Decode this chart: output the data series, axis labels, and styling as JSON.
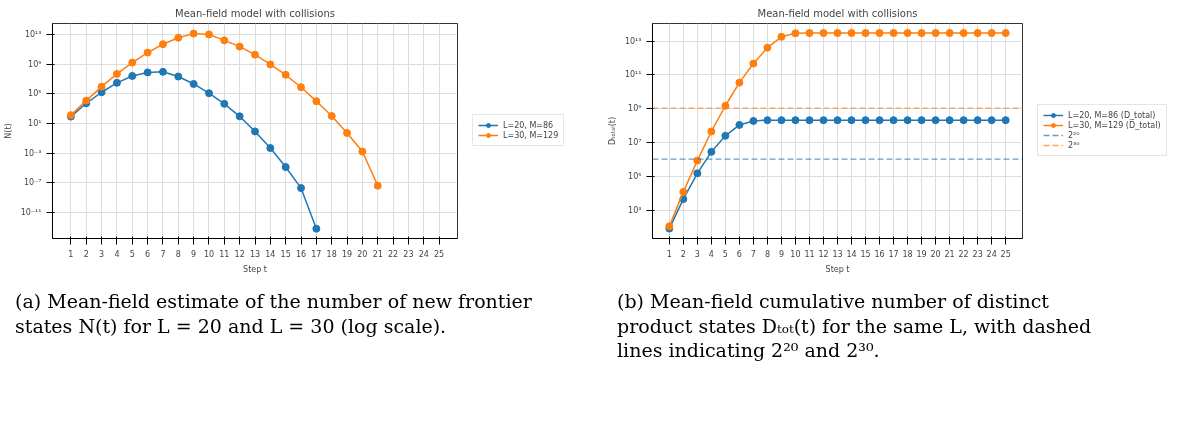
{
  "chart_data": [
    {
      "type": "line",
      "title": "Mean-field model with collisions",
      "xlabel": "Step t",
      "ylabel": "N(t)",
      "log": "y",
      "grid": true,
      "legend": "right",
      "marker": "circle",
      "line_style": "solid",
      "xlim": [
        -0.2,
        26.2
      ],
      "xticks": [
        1,
        2,
        3,
        4,
        5,
        6,
        7,
        8,
        9,
        10,
        11,
        12,
        13,
        14,
        15,
        16,
        17,
        18,
        19,
        20,
        21,
        22,
        23,
        24,
        25
      ],
      "ylim": [
        3e-15,
        300000000000000.0
      ],
      "yticks": [
        {
          "value": 1e-11,
          "label": "10⁻¹¹"
        },
        {
          "value": 1e-07,
          "label": "10⁻⁷"
        },
        {
          "value": 0.001,
          "label": "10⁻³"
        },
        {
          "value": 10.0,
          "label": "10¹"
        },
        {
          "value": 100000.0,
          "label": "10⁵"
        },
        {
          "value": 1000000000.0,
          "label": "10⁹"
        },
        {
          "value": 10000000000000.0,
          "label": "10¹³"
        }
      ],
      "x": [
        1,
        2,
        3,
        4,
        5,
        6,
        7,
        8,
        9,
        10,
        11,
        12,
        13,
        14,
        15,
        16,
        17,
        18,
        19,
        20,
        21
      ],
      "series": [
        {
          "name": "L=20, M=86",
          "color": "#1f77b4",
          "values": [
            83,
            5200,
            160000.0,
            3000000.0,
            25000000.0,
            76000000.0,
            91000000.0,
            21000000.0,
            2100000.0,
            120000.0,
            4400,
            91,
            0.83,
            0.0048,
            1.3e-05,
            1.9e-08,
            6.3e-14,
            null,
            null,
            null,
            null
          ]
        },
        {
          "name": "L=30, M=129",
          "color": "#ff7f0e",
          "values": [
            130,
            12000.0,
            910000.0,
            48000000.0,
            1600000000.0,
            36000000000.0,
            480000000000.0,
            3600000000000.0,
            13000000000000.0,
            10000000000000.0,
            1600000000000.0,
            230000000000.0,
            19000000000.0,
            910000000.0,
            36000000.0,
            760000.0,
            10000.0,
            100,
            0.52,
            0.0016,
            4e-08
          ]
        }
      ],
      "annotations": [
        "(a) Mean-field estimate of the number of new frontier states N(t) for L = 20 and L = 30 (log scale)."
      ]
    },
    {
      "type": "line",
      "title": "Mean-field model with collisions",
      "xlabel": "Step t",
      "ylabel": "Dₜₒₜₐₗ(t)",
      "log": "y",
      "grid": true,
      "legend": "right",
      "marker": "circle",
      "line_style": "solid",
      "xlim": [
        -0.2,
        26.2
      ],
      "xticks": [
        1,
        2,
        3,
        4,
        5,
        6,
        7,
        8,
        9,
        10,
        11,
        12,
        13,
        14,
        15,
        16,
        17,
        18,
        19,
        20,
        21,
        22,
        23,
        24,
        25
      ],
      "ylim": [
        21,
        110000000000000.0
      ],
      "yticks": [
        {
          "value": 1000.0,
          "label": "10³"
        },
        {
          "value": 100000.0,
          "label": "10⁵"
        },
        {
          "value": 10000000.0,
          "label": "10⁷"
        },
        {
          "value": 1000000000.0,
          "label": "10⁹"
        },
        {
          "value": 100000000000.0,
          "label": "10¹¹"
        },
        {
          "value": 10000000000000.0,
          "label": "10¹³"
        }
      ],
      "x": [
        1,
        2,
        3,
        4,
        5,
        6,
        7,
        8,
        9,
        10,
        11,
        12,
        13,
        14,
        15,
        16,
        17,
        18,
        19,
        20,
        21,
        22,
        23,
        24,
        25
      ],
      "series": [
        {
          "name": "L=20, M=86 (D_total)",
          "color": "#1f77b4",
          "values": [
            81,
            4500,
            150000.0,
            2800000.0,
            25000000.0,
            110000000.0,
            190000000.0,
            210000000.0,
            210000000.0,
            210000000.0,
            210000000.0,
            210000000.0,
            210000000.0,
            210000000.0,
            210000000.0,
            210000000.0,
            210000000.0,
            210000000.0,
            210000000.0,
            210000000.0,
            210000000.0,
            210000000.0,
            210000000.0,
            210000000.0,
            210000000.0
          ]
        },
        {
          "name": "L=30, M=129 (D_total)",
          "color": "#ff7f0e",
          "values": [
            110,
            12000.0,
            850000.0,
            45000000.0,
            1500000000.0,
            35000000000.0,
            470000000000.0,
            4100000000000.0,
            18000000000000.0,
            29000000000000.0,
            30000000000000.0,
            30000000000000.0,
            30000000000000.0,
            30000000000000.0,
            30000000000000.0,
            30000000000000.0,
            30000000000000.0,
            30000000000000.0,
            30000000000000.0,
            30000000000000.0,
            30000000000000.0,
            30000000000000.0,
            30000000000000.0,
            30000000000000.0,
            30000000000000.0
          ]
        }
      ],
      "ref_lines": [
        {
          "axis": "y",
          "value": 1048576,
          "label": "2²⁰",
          "color": "#1f77b4",
          "line_style": "dashed"
        },
        {
          "axis": "y",
          "value": 1073741824,
          "label": "2³⁰",
          "color": "#ff7f0e",
          "line_style": "dashed"
        }
      ],
      "annotations": [
        "(b) Mean-field cumulative number of distinct product states Dₜₒₜ(t) for the same L, with dashed lines indicating 2²⁰ and 2³⁰."
      ]
    }
  ]
}
